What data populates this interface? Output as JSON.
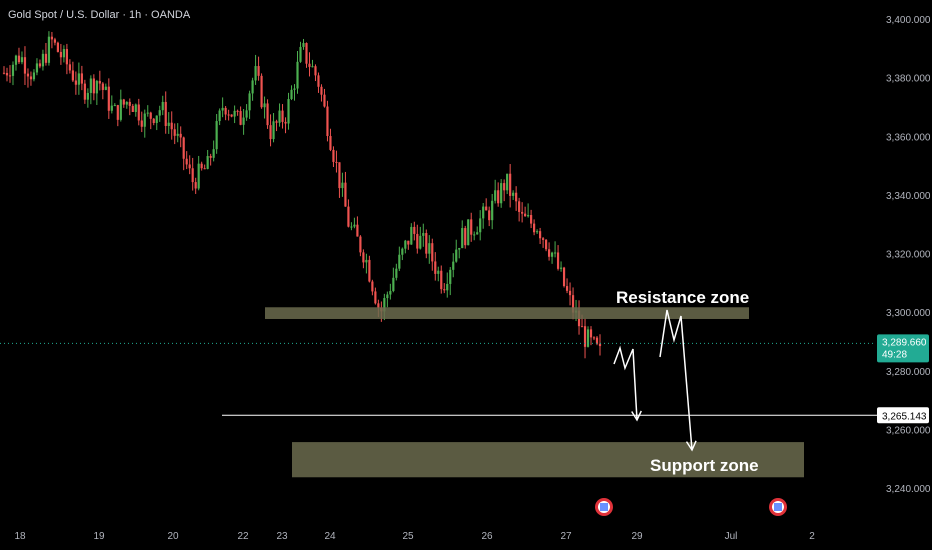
{
  "header": {
    "symbol_title": "Gold Spot / U.S. Dollar · 1h · OANDA"
  },
  "colors": {
    "background": "#000000",
    "up": "#26a69a",
    "up_bright": "#4caf50",
    "down": "#ef5350",
    "zone_fill": "#6b6b4e",
    "price_tag": "#22ab94",
    "line": "#ffffff"
  },
  "chart_data": {
    "type": "candlestick",
    "title": "Gold Spot / U.S. Dollar · 1h · OANDA",
    "ylim": [
      3230,
      3410
    ],
    "y_ticks": [
      3400,
      3380,
      3360,
      3340,
      3320,
      3300,
      3280,
      3260,
      3240
    ],
    "y_tick_labels": [
      "3,400.000",
      "3,380.000",
      "3,360.000",
      "3,340.000",
      "3,320.000",
      "3,300.000",
      "3,280.000",
      "3,260.000",
      "3,240.000"
    ],
    "x_tick_labels": [
      "18",
      "19",
      "20",
      "22",
      "23",
      "24",
      "25",
      "26",
      "27",
      "29",
      "Jul",
      "2"
    ],
    "current_price": 3289.66,
    "current_price_label": "3,289.660",
    "countdown": "49:28",
    "horizontal_line": {
      "value": 3265.143,
      "label": "3,265.143"
    },
    "resistance_zone": {
      "label": "Resistance zone",
      "low": 3298,
      "high": 3302
    },
    "support_zone": {
      "label": "Support zone",
      "low": 3244,
      "high": 3256
    },
    "price_path": [
      {
        "x": 0,
        "close": 3382
      },
      {
        "x": 0.02,
        "close": 3388
      },
      {
        "x": 0.04,
        "close": 3380
      },
      {
        "x": 0.06,
        "close": 3393
      },
      {
        "x": 0.08,
        "close": 3385
      },
      {
        "x": 0.1,
        "close": 3376
      },
      {
        "x": 0.12,
        "close": 3380
      },
      {
        "x": 0.14,
        "close": 3368
      },
      {
        "x": 0.16,
        "close": 3373
      },
      {
        "x": 0.18,
        "close": 3366
      },
      {
        "x": 0.2,
        "close": 3370
      },
      {
        "x": 0.22,
        "close": 3360
      },
      {
        "x": 0.24,
        "close": 3345
      },
      {
        "x": 0.26,
        "close": 3350
      },
      {
        "x": 0.28,
        "close": 3372
      },
      {
        "x": 0.3,
        "close": 3365
      },
      {
        "x": 0.32,
        "close": 3382
      },
      {
        "x": 0.34,
        "close": 3362
      },
      {
        "x": 0.36,
        "close": 3368
      },
      {
        "x": 0.38,
        "close": 3390
      },
      {
        "x": 0.4,
        "close": 3380
      },
      {
        "x": 0.42,
        "close": 3355
      },
      {
        "x": 0.44,
        "close": 3330
      },
      {
        "x": 0.46,
        "close": 3320
      },
      {
        "x": 0.48,
        "close": 3300
      },
      {
        "x": 0.5,
        "close": 3315
      },
      {
        "x": 0.52,
        "close": 3328
      },
      {
        "x": 0.54,
        "close": 3322
      },
      {
        "x": 0.56,
        "close": 3310
      },
      {
        "x": 0.58,
        "close": 3325
      },
      {
        "x": 0.6,
        "close": 3330
      },
      {
        "x": 0.62,
        "close": 3335
      },
      {
        "x": 0.64,
        "close": 3345
      },
      {
        "x": 0.66,
        "close": 3332
      },
      {
        "x": 0.68,
        "close": 3330
      },
      {
        "x": 0.7,
        "close": 3320
      },
      {
        "x": 0.72,
        "close": 3305
      },
      {
        "x": 0.74,
        "close": 3292
      },
      {
        "x": 0.76,
        "close": 3286
      }
    ],
    "projection_arrows": [
      {
        "points": [
          [
            3283,
            0.0
          ],
          [
            3290,
            0.3
          ],
          [
            3283,
            0.55
          ],
          [
            3265,
            1.0
          ]
        ]
      },
      {
        "points": [
          [
            3287,
            0.0
          ],
          [
            3300,
            0.3
          ],
          [
            3290,
            0.55
          ],
          [
            3252,
            1.0
          ]
        ]
      }
    ],
    "events": [
      "us-flag-icon",
      "us-flag-icon"
    ]
  }
}
